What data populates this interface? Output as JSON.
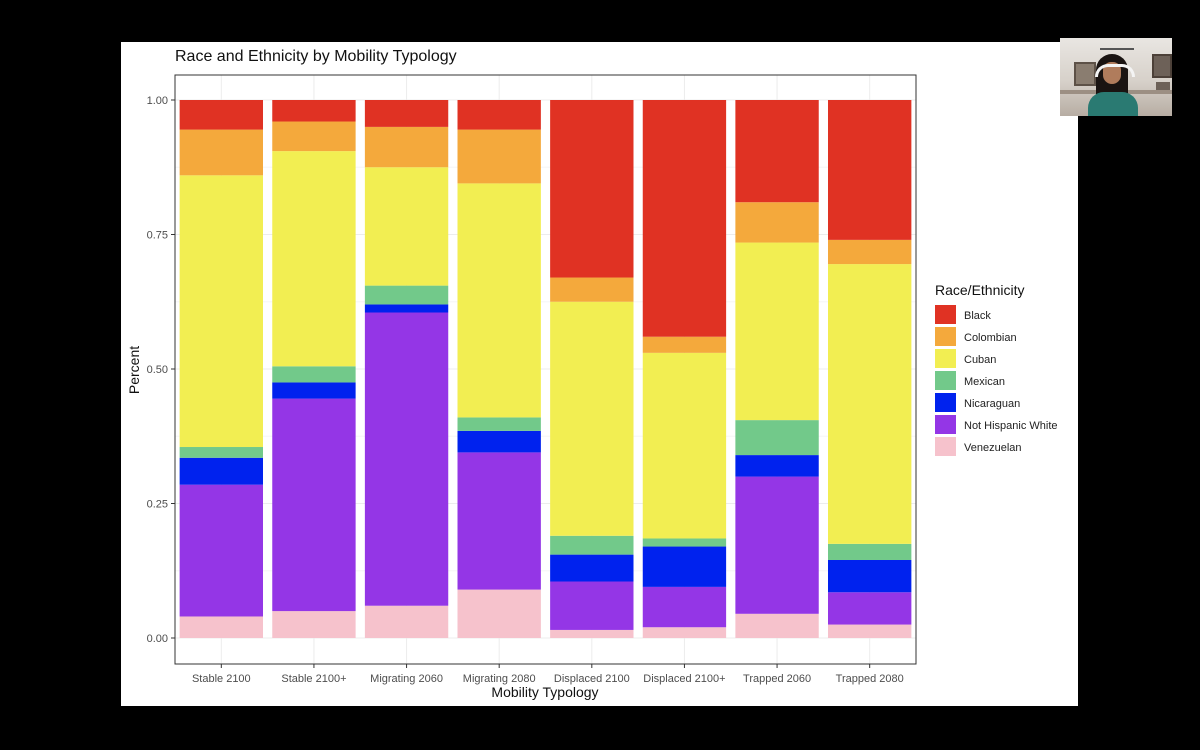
{
  "chart_data": {
    "type": "bar",
    "stacked": true,
    "title": "Race and Ethnicity by Mobility Typology",
    "xlabel": "Mobility Typology",
    "ylabel": "Percent",
    "ylim": [
      0,
      1
    ],
    "yticks": [
      "0.00",
      "0.25",
      "0.50",
      "0.75",
      "1.00"
    ],
    "yticks_values": [
      0,
      0.25,
      0.5,
      0.75,
      1
    ],
    "grid": true,
    "legend_position": "right",
    "legend_title": "Race/Ethnicity",
    "categories": [
      "Stable 2100",
      "Stable 2100+",
      "Migrating 2060",
      "Migrating 2080",
      "Displaced 2100",
      "Displaced 2100+",
      "Trapped 2060",
      "Trapped 2080"
    ],
    "series": [
      {
        "name": "Black",
        "color": "#e03223",
        "values": [
          0.055,
          0.04,
          0.05,
          0.055,
          0.33,
          0.44,
          0.19,
          0.26
        ]
      },
      {
        "name": "Colombian",
        "color": "#f4a93c",
        "values": [
          0.085,
          0.055,
          0.075,
          0.1,
          0.045,
          0.03,
          0.075,
          0.045
        ]
      },
      {
        "name": "Cuban",
        "color": "#f2ee52",
        "values": [
          0.505,
          0.4,
          0.22,
          0.435,
          0.435,
          0.345,
          0.33,
          0.52
        ]
      },
      {
        "name": "Mexican",
        "color": "#72c98a",
        "values": [
          0.02,
          0.03,
          0.035,
          0.025,
          0.035,
          0.015,
          0.065,
          0.03
        ]
      },
      {
        "name": "Nicaraguan",
        "color": "#0022ee",
        "values": [
          0.05,
          0.03,
          0.015,
          0.04,
          0.05,
          0.075,
          0.04,
          0.06
        ]
      },
      {
        "name": "Not Hispanic White",
        "color": "#9436e6",
        "values": [
          0.245,
          0.395,
          0.545,
          0.255,
          0.09,
          0.075,
          0.255,
          0.06
        ]
      },
      {
        "name": "Venezuelan",
        "color": "#f6c2cc",
        "values": [
          0.04,
          0.05,
          0.06,
          0.09,
          0.015,
          0.02,
          0.045,
          0.025
        ]
      }
    ]
  }
}
